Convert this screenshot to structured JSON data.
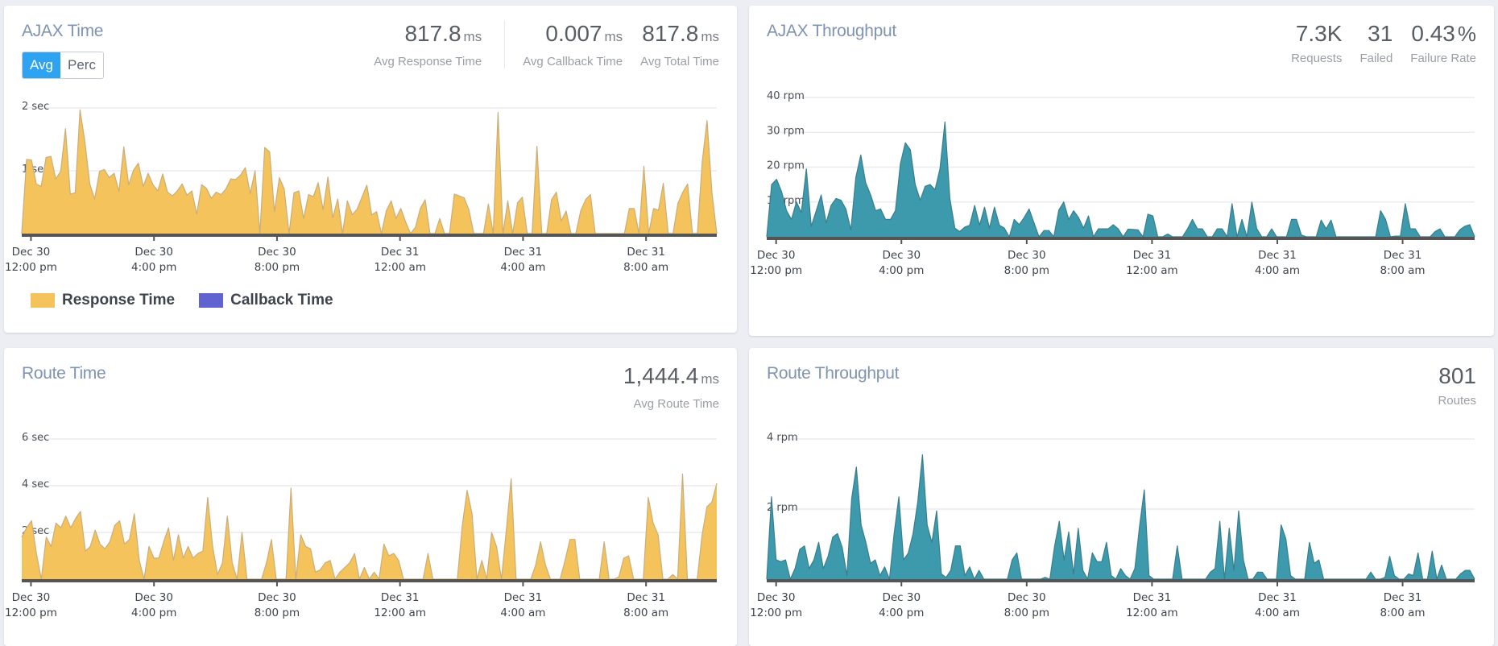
{
  "colors": {
    "response_fill": "#f5c35c",
    "response_stroke": "#c9ad7c",
    "callback": "#6163d1",
    "throughput_fill": "#3d9aad",
    "throughput_stroke": "#3a7d8c",
    "accent": "#2ea3f2"
  },
  "ajax_time": {
    "title": "AJAX Time",
    "toggle": [
      {
        "label": "Avg",
        "active": true
      },
      {
        "label": "Perc",
        "active": false
      }
    ],
    "stats": [
      {
        "value": "817.8",
        "unit": "ms",
        "label": "Avg Response Time"
      },
      {
        "value": "0.007",
        "unit": "ms",
        "label": "Avg Callback Time"
      },
      {
        "value": "817.8",
        "unit": "ms",
        "label": "Avg Total Time"
      }
    ],
    "legend": [
      {
        "label": "Response Time",
        "color": "#f5c35c"
      },
      {
        "label": "Callback Time",
        "color": "#6163d1"
      }
    ]
  },
  "ajax_throughput": {
    "title": "AJAX Throughput",
    "stats": [
      {
        "value": "7.3K",
        "unit": "",
        "label": "Requests"
      },
      {
        "value": "31",
        "unit": "",
        "label": "Failed"
      },
      {
        "value": "0.43",
        "unit": "%",
        "label": "Failure Rate"
      }
    ]
  },
  "route_time": {
    "title": "Route Time",
    "stats": [
      {
        "value": "1,444.4",
        "unit": "ms",
        "label": "Avg Route Time"
      }
    ]
  },
  "route_throughput": {
    "title": "Route Throughput",
    "stats": [
      {
        "value": "801",
        "unit": "",
        "label": "Routes"
      }
    ]
  },
  "chart_data": [
    {
      "id": "ajax-time",
      "type": "area",
      "title": "AJAX Time",
      "ylabel": "sec",
      "ylim": [
        0,
        2
      ],
      "yticks": [
        {
          "value": 1,
          "label": "1 sec"
        },
        {
          "value": 2,
          "label": "2 sec"
        }
      ],
      "xlim_hours": [
        -0.3,
        22.3
      ],
      "xticks": [
        {
          "hour": 0,
          "date": "Dec 30",
          "time": "12:00 pm"
        },
        {
          "hour": 4,
          "date": "Dec 30",
          "time": "4:00 pm"
        },
        {
          "hour": 8,
          "date": "Dec 30",
          "time": "8:00 pm"
        },
        {
          "hour": 12,
          "date": "Dec 31",
          "time": "12:00 am"
        },
        {
          "hour": 16,
          "date": "Dec 31",
          "time": "4:00 am"
        },
        {
          "hour": 20,
          "date": "Dec 31",
          "time": "8:00 am"
        }
      ],
      "grid": true,
      "legend": "bottom-left",
      "series": [
        {
          "name": "Response Time",
          "values": [
            0,
            1.18,
            1.17,
            0.79,
            0.75,
            1.21,
            1.23,
            0.87,
            0.99,
            1.67,
            0.63,
            0.65,
            1.97,
            1.45,
            0.79,
            0.55,
            0.99,
            1.02,
            0.89,
            0.96,
            0.67,
            1.38,
            0.78,
            1.01,
            1.12,
            0.75,
            0.96,
            0.78,
            0.68,
            0.95,
            0.66,
            0.6,
            0.68,
            0.79,
            0.61,
            0.68,
            0.31,
            0.78,
            0.72,
            0.56,
            0.66,
            0.62,
            0.71,
            0.87,
            0.86,
            0.93,
            1.05,
            0.64,
            1.0,
            0,
            1.37,
            1.3,
            0.35,
            0.89,
            0.71,
            0,
            0.65,
            0.68,
            0.24,
            0.62,
            0.59,
            0.81,
            0.38,
            0.9,
            0.25,
            0.55,
            0,
            0.52,
            0.3,
            0.39,
            0.58,
            0.77,
            0.3,
            0.35,
            0,
            0.36,
            0.52,
            0.24,
            0.4,
            0.18,
            0,
            0.1,
            0.4,
            0.54,
            0,
            0,
            0.24,
            0,
            0,
            0.63,
            0.6,
            0.57,
            0.38,
            0,
            0,
            0,
            0.47,
            0,
            1.93,
            0,
            0.52,
            0,
            0.49,
            0.58,
            0,
            0,
            1.39,
            0,
            0,
            0.54,
            0.66,
            0.2,
            0.36,
            0,
            0,
            0.36,
            0.54,
            0.62,
            0,
            0,
            0,
            0,
            0,
            0,
            0,
            0.4,
            0.4,
            0,
            1.07,
            0,
            0.4,
            0.37,
            0.8,
            0,
            0,
            0.48,
            0.66,
            0.79,
            0,
            0,
            1.14,
            1.8,
            0.65,
            0
          ]
        }
      ]
    },
    {
      "id": "ajax-throughput",
      "type": "area",
      "title": "AJAX Throughput",
      "ylabel": "rpm",
      "ylim": [
        0,
        40
      ],
      "yticks": [
        {
          "value": 10,
          "label": "10 rpm"
        },
        {
          "value": 20,
          "label": "20 rpm"
        },
        {
          "value": 30,
          "label": "30 rpm"
        },
        {
          "value": 40,
          "label": "40 rpm"
        }
      ],
      "xlim_hours": [
        -0.3,
        22.3
      ],
      "xticks": [
        {
          "hour": 0,
          "date": "Dec 30",
          "time": "12:00 pm"
        },
        {
          "hour": 4,
          "date": "Dec 30",
          "time": "4:00 pm"
        },
        {
          "hour": 8,
          "date": "Dec 30",
          "time": "8:00 pm"
        },
        {
          "hour": 12,
          "date": "Dec 31",
          "time": "12:00 am"
        },
        {
          "hour": 16,
          "date": "Dec 31",
          "time": "4:00 am"
        },
        {
          "hour": 20,
          "date": "Dec 31",
          "time": "8:00 am"
        }
      ],
      "grid": true,
      "series": [
        {
          "name": "Requests",
          "values": [
            0,
            15,
            16.5,
            13,
            7.5,
            5,
            10,
            7,
            19.5,
            3,
            7.5,
            12,
            4,
            9,
            11,
            10.5,
            8,
            2,
            17,
            23.5,
            15.5,
            12,
            7.5,
            8,
            5,
            5,
            7.5,
            21,
            27,
            25,
            15,
            10.5,
            14.5,
            15,
            13.5,
            19.5,
            33,
            11,
            2.5,
            1.5,
            2.8,
            3.3,
            9,
            3.3,
            8.5,
            2.5,
            8.5,
            3.3,
            2.5,
            0,
            5,
            3.5,
            5.5,
            8,
            4,
            0,
            1.8,
            1.8,
            0,
            7.7,
            10,
            5,
            7.5,
            5.5,
            2.5,
            6,
            0,
            2.3,
            2.3,
            2.3,
            3.5,
            2.3,
            0,
            2.2,
            2.1,
            2,
            0,
            6.5,
            6,
            0,
            0,
            0.8,
            0,
            0,
            0,
            2.3,
            5,
            2.3,
            2.3,
            0,
            0,
            2.3,
            2.3,
            0,
            9.5,
            0,
            5,
            0,
            10,
            2.3,
            0,
            0,
            2.3,
            0,
            0,
            0,
            5,
            5,
            0.5,
            0,
            0,
            0,
            4.8,
            2.3,
            4.8,
            0,
            0,
            0,
            0,
            0,
            0,
            0,
            0,
            0,
            7.5,
            5,
            0,
            0.2,
            0.2,
            9.5,
            2.3,
            2.3,
            0,
            0,
            0,
            1.5,
            2.3,
            0,
            0,
            0,
            2,
            3,
            3.5,
            0
          ]
        }
      ]
    },
    {
      "id": "route-time",
      "type": "area",
      "title": "Route Time",
      "ylabel": "sec",
      "ylim": [
        0,
        6
      ],
      "yticks": [
        {
          "value": 2,
          "label": "2 sec"
        },
        {
          "value": 4,
          "label": "4 sec"
        },
        {
          "value": 6,
          "label": "6 sec"
        }
      ],
      "xlim_hours": [
        -0.3,
        22.3
      ],
      "xticks": [
        {
          "hour": 0,
          "date": "Dec 30",
          "time": "12:00 pm"
        },
        {
          "hour": 4,
          "date": "Dec 30",
          "time": "4:00 pm"
        },
        {
          "hour": 8,
          "date": "Dec 30",
          "time": "8:00 pm"
        },
        {
          "hour": 12,
          "date": "Dec 31",
          "time": "12:00 am"
        },
        {
          "hour": 16,
          "date": "Dec 31",
          "time": "4:00 am"
        },
        {
          "hour": 20,
          "date": "Dec 31",
          "time": "8:00 am"
        }
      ],
      "grid": true,
      "series": [
        {
          "name": "Route Time",
          "values": [
            1.8,
            2.2,
            2.5,
            1.1,
            0,
            1.8,
            1.4,
            2.4,
            2.2,
            2.7,
            2.2,
            2.6,
            2.9,
            1.2,
            1.4,
            2.1,
            1.5,
            1.3,
            1.6,
            2.3,
            2.5,
            1.5,
            1.7,
            2.8,
            0.8,
            0,
            1.4,
            0.9,
            0.9,
            1.6,
            2.2,
            0.8,
            1.9,
            0.9,
            1.4,
            0.9,
            1.1,
            1.2,
            3.5,
            1.4,
            0.2,
            0.7,
            2.7,
            0.7,
            0,
            2.0,
            0,
            0,
            0,
            0,
            0.7,
            1.7,
            0,
            0,
            0,
            3.9,
            0,
            1.9,
            1.4,
            1.3,
            0.3,
            0.4,
            0.7,
            0.8,
            0,
            0.3,
            0.5,
            0.7,
            1.1,
            0,
            0.5,
            0,
            0.3,
            0,
            1.5,
            1.0,
            1.1,
            0.8,
            0,
            0,
            0,
            0,
            0,
            1.1,
            0,
            0,
            0,
            0,
            0,
            0,
            2.3,
            3.8,
            2.8,
            0,
            0.8,
            0,
            2.0,
            1.4,
            0,
            2.1,
            4.3,
            0,
            0,
            0,
            0,
            0.6,
            1.6,
            0.6,
            0,
            0,
            0,
            0.8,
            1.7,
            1.7,
            0,
            0,
            0,
            0,
            0,
            1.6,
            0,
            0,
            0.1,
            0.9,
            1.0,
            0,
            0,
            0,
            3.5,
            2.4,
            1.9,
            0,
            0,
            0.2,
            0,
            4.5,
            0,
            0,
            0,
            1.9,
            3.1,
            3.3,
            4.1
          ]
        }
      ]
    },
    {
      "id": "route-throughput",
      "type": "area",
      "title": "Route Throughput",
      "ylabel": "rpm",
      "ylim": [
        0,
        4
      ],
      "yticks": [
        {
          "value": 2,
          "label": "2 rpm"
        },
        {
          "value": 4,
          "label": "4 rpm"
        }
      ],
      "xlim_hours": [
        -0.3,
        22.3
      ],
      "xticks": [
        {
          "hour": 0,
          "date": "Dec 30",
          "time": "12:00 pm"
        },
        {
          "hour": 4,
          "date": "Dec 30",
          "time": "4:00 pm"
        },
        {
          "hour": 8,
          "date": "Dec 30",
          "time": "8:00 pm"
        },
        {
          "hour": 12,
          "date": "Dec 31",
          "time": "12:00 am"
        },
        {
          "hour": 16,
          "date": "Dec 31",
          "time": "4:00 am"
        },
        {
          "hour": 20,
          "date": "Dec 31",
          "time": "8:00 am"
        }
      ],
      "grid": true,
      "series": [
        {
          "name": "Routes",
          "values": [
            0,
            2.35,
            0.55,
            0.5,
            0.55,
            0,
            0.3,
            0.85,
            0.95,
            0.3,
            0.55,
            1.05,
            0.3,
            0.65,
            1.2,
            1.3,
            0.9,
            0.1,
            2.3,
            3.2,
            1.55,
            1.05,
            0.45,
            0.55,
            0.1,
            0.35,
            0,
            1.3,
            2.35,
            0.55,
            0.75,
            1.3,
            2.2,
            3.55,
            1.55,
            1.05,
            1.95,
            0.15,
            0.05,
            0.25,
            0.95,
            0.95,
            0.1,
            0.35,
            0,
            0.25,
            0,
            0,
            0,
            0,
            0,
            0,
            0.55,
            0.75,
            0,
            0,
            0,
            0,
            0,
            0.05,
            0,
            0.95,
            1.65,
            0.55,
            1.35,
            0.15,
            1.45,
            0.25,
            0,
            0.75,
            0.5,
            0.5,
            1.05,
            0.1,
            0,
            0.3,
            0.1,
            0,
            0.3,
            1.5,
            2.55,
            0.1,
            0,
            0,
            0,
            0,
            0,
            0.95,
            0,
            0,
            0,
            0,
            0,
            0,
            0.2,
            0.3,
            1.65,
            0,
            1.45,
            0.25,
            1.95,
            0.55,
            0,
            0,
            0.2,
            0.2,
            0,
            0,
            0,
            1.55,
            1.15,
            0.1,
            0,
            0,
            0,
            1.05,
            0.45,
            0.55,
            0,
            0,
            0,
            0,
            0,
            0,
            0,
            0,
            0,
            0,
            0.2,
            0,
            0,
            0.05,
            0.65,
            0.1,
            0,
            0,
            0.15,
            0.1,
            0.75,
            0,
            0,
            0.8,
            0,
            0.4,
            0,
            0,
            0,
            0.15,
            0.25,
            0.25,
            0
          ]
        }
      ]
    }
  ]
}
